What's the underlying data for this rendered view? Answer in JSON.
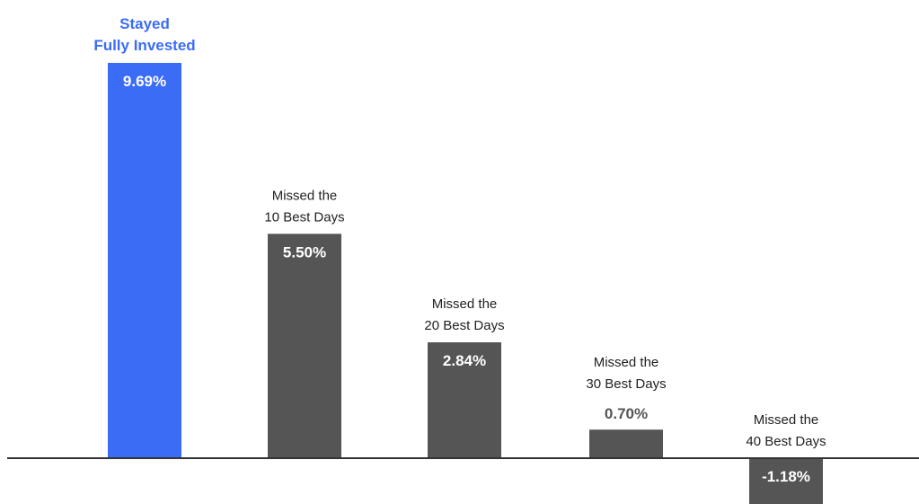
{
  "colors": {
    "highlight": "#3b6cf6",
    "bar": "#555555",
    "baseline": "#333333",
    "label_dark": "#222222",
    "value_on_bar": "#ffffff",
    "value_off_bar": "#555555"
  },
  "chart_data": {
    "type": "bar",
    "categories": [
      [
        "Stayed",
        "Fully Invested"
      ],
      [
        "Missed the",
        "10 Best Days"
      ],
      [
        "Missed the",
        "20 Best Days"
      ],
      [
        "Missed the",
        "30 Best Days"
      ],
      [
        "Missed the",
        "40 Best Days"
      ]
    ],
    "values": [
      9.69,
      5.5,
      2.84,
      0.7,
      -1.18
    ],
    "value_labels": [
      "9.69%",
      "5.50%",
      "2.84%",
      "0.70%",
      "-1.18%"
    ],
    "highlight_index": 0,
    "ylim": [
      -1.6,
      10.5
    ],
    "grid": false,
    "legend": "none"
  }
}
